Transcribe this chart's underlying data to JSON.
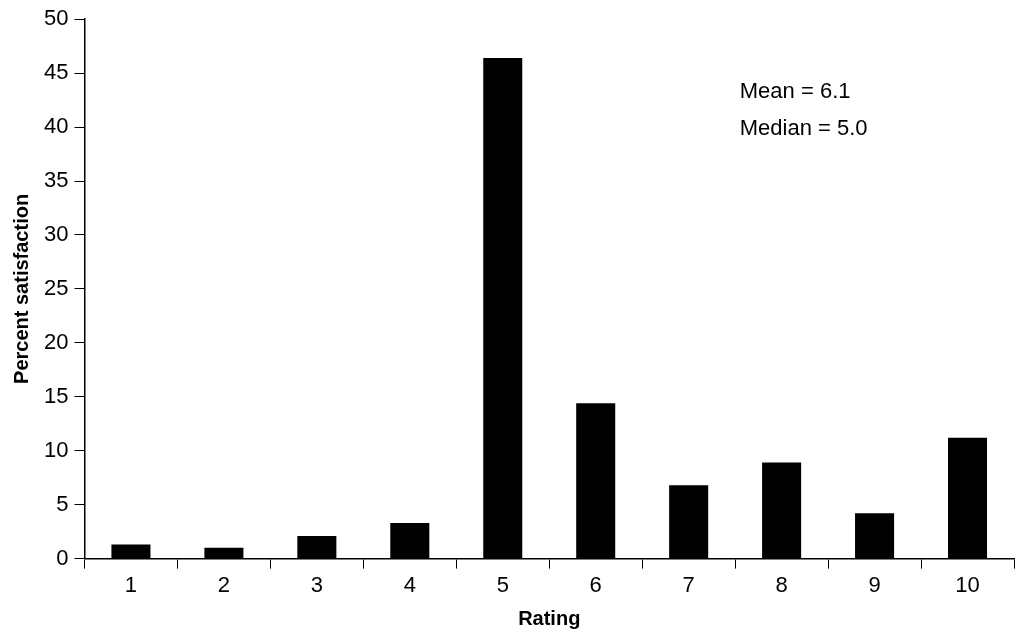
{
  "chart_data": {
    "type": "bar",
    "xlabel": "Rating",
    "ylabel": "Percent satisfaction",
    "categories": [
      "1",
      "2",
      "3",
      "4",
      "5",
      "6",
      "7",
      "8",
      "9",
      "10"
    ],
    "values": [
      1.3,
      1.0,
      2.1,
      3.3,
      46.4,
      14.4,
      6.8,
      8.9,
      4.2,
      11.2
    ],
    "color": "#000000",
    "ylim": [
      0,
      50
    ],
    "yticks": [
      0,
      5,
      10,
      15,
      20,
      25,
      30,
      35,
      40,
      45,
      50
    ],
    "annotations": [
      "Mean = 6.1",
      "Median = 5.0"
    ]
  }
}
